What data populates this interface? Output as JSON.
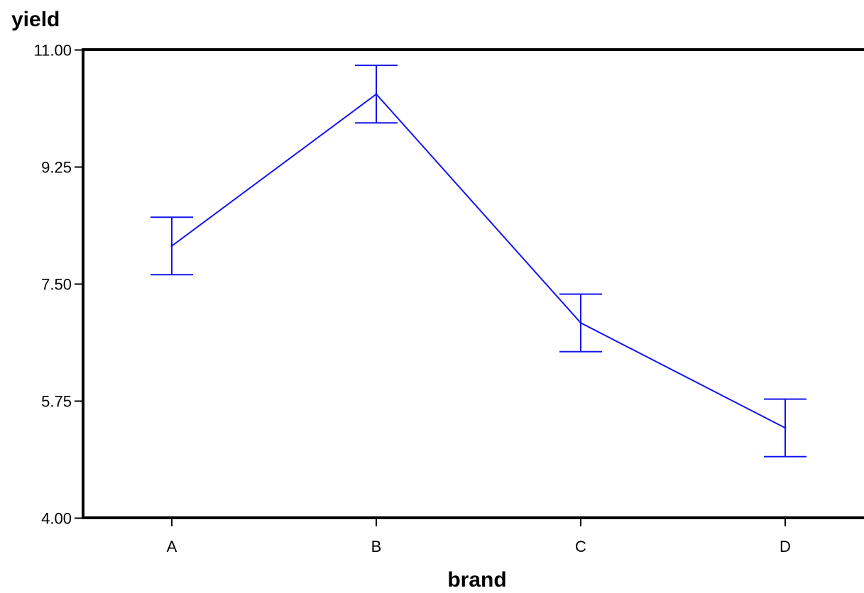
{
  "chart_data": {
    "type": "line",
    "title": "",
    "xlabel": "brand",
    "ylabel": "yield",
    "categories": [
      "A",
      "B",
      "C",
      "D"
    ],
    "series": [
      {
        "values": [
          8.07,
          10.34,
          6.92,
          5.35
        ],
        "error_low": [
          7.64,
          9.91,
          6.49,
          4.92
        ],
        "error_high": [
          8.5,
          10.77,
          7.35,
          5.78
        ]
      }
    ],
    "ylim": [
      4.0,
      11.0
    ],
    "yticks": [
      4.0,
      5.75,
      7.5,
      9.25,
      11.0
    ],
    "ytick_labels": [
      "4.00",
      "5.75",
      "7.50",
      "9.25",
      "11.00"
    ],
    "grid": false,
    "legend": "none",
    "colors": {
      "series": "#1515ee",
      "axis": "#000000"
    }
  }
}
